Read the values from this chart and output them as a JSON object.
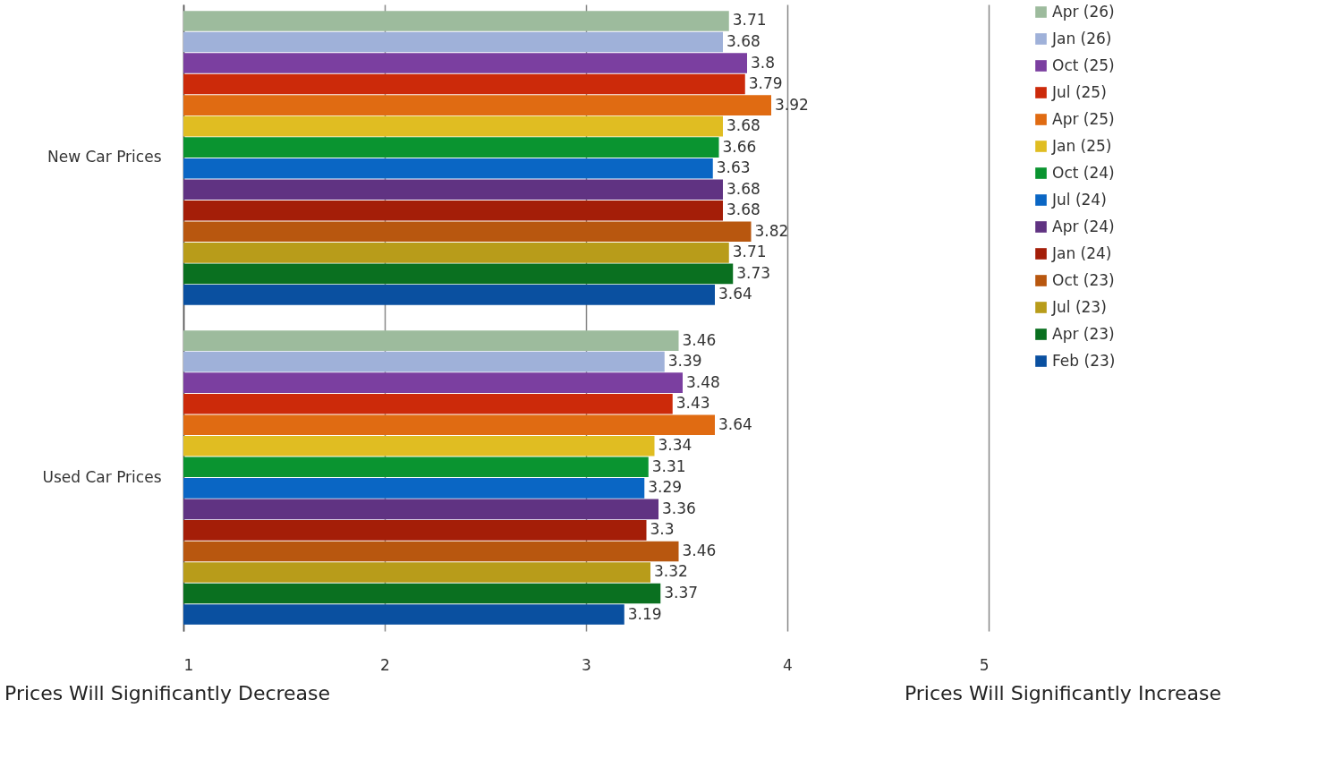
{
  "chart_data": {
    "type": "bar",
    "orientation": "horizontal",
    "categories": [
      "New Car Prices",
      "Used Car Prices"
    ],
    "series": [
      {
        "name": "Apr (26)",
        "color": "#9dbb9d",
        "values": [
          3.71,
          3.46
        ]
      },
      {
        "name": "Jan (26)",
        "color": "#9fb1d9",
        "values": [
          3.68,
          3.39
        ]
      },
      {
        "name": "Oct (25)",
        "color": "#7b3fa0",
        "values": [
          3.8,
          3.48
        ]
      },
      {
        "name": "Jul (25)",
        "color": "#cc2a0a",
        "values": [
          3.79,
          3.43
        ]
      },
      {
        "name": "Apr (25)",
        "color": "#e06b12",
        "values": [
          3.92,
          3.64
        ]
      },
      {
        "name": "Jan (25)",
        "color": "#e0bd22",
        "values": [
          3.68,
          3.34
        ]
      },
      {
        "name": "Oct (24)",
        "color": "#0a9430",
        "values": [
          3.66,
          3.31
        ]
      },
      {
        "name": "Jul (24)",
        "color": "#0a66c4",
        "values": [
          3.63,
          3.29
        ]
      },
      {
        "name": "Apr (24)",
        "color": "#603382",
        "values": [
          3.68,
          3.36
        ]
      },
      {
        "name": "Jan (24)",
        "color": "#a41e08",
        "values": [
          3.68,
          3.3
        ]
      },
      {
        "name": "Oct (23)",
        "color": "#b8570f",
        "values": [
          3.82,
          3.46
        ]
      },
      {
        "name": "Jul (23)",
        "color": "#b89c1a",
        "values": [
          3.71,
          3.32
        ]
      },
      {
        "name": "Apr (23)",
        "color": "#0a7020",
        "values": [
          3.73,
          3.37
        ]
      },
      {
        "name": "Feb (23)",
        "color": "#0a50a0",
        "values": [
          3.64,
          3.19
        ]
      }
    ],
    "xlim": [
      1,
      5
    ],
    "xticks": [
      1,
      2,
      3,
      4,
      5
    ],
    "grid": "x",
    "data_labels": true,
    "legend": "right",
    "annotations": [
      "Prices Will Significantly Decrease",
      "Prices Will Significantly Increase"
    ]
  }
}
